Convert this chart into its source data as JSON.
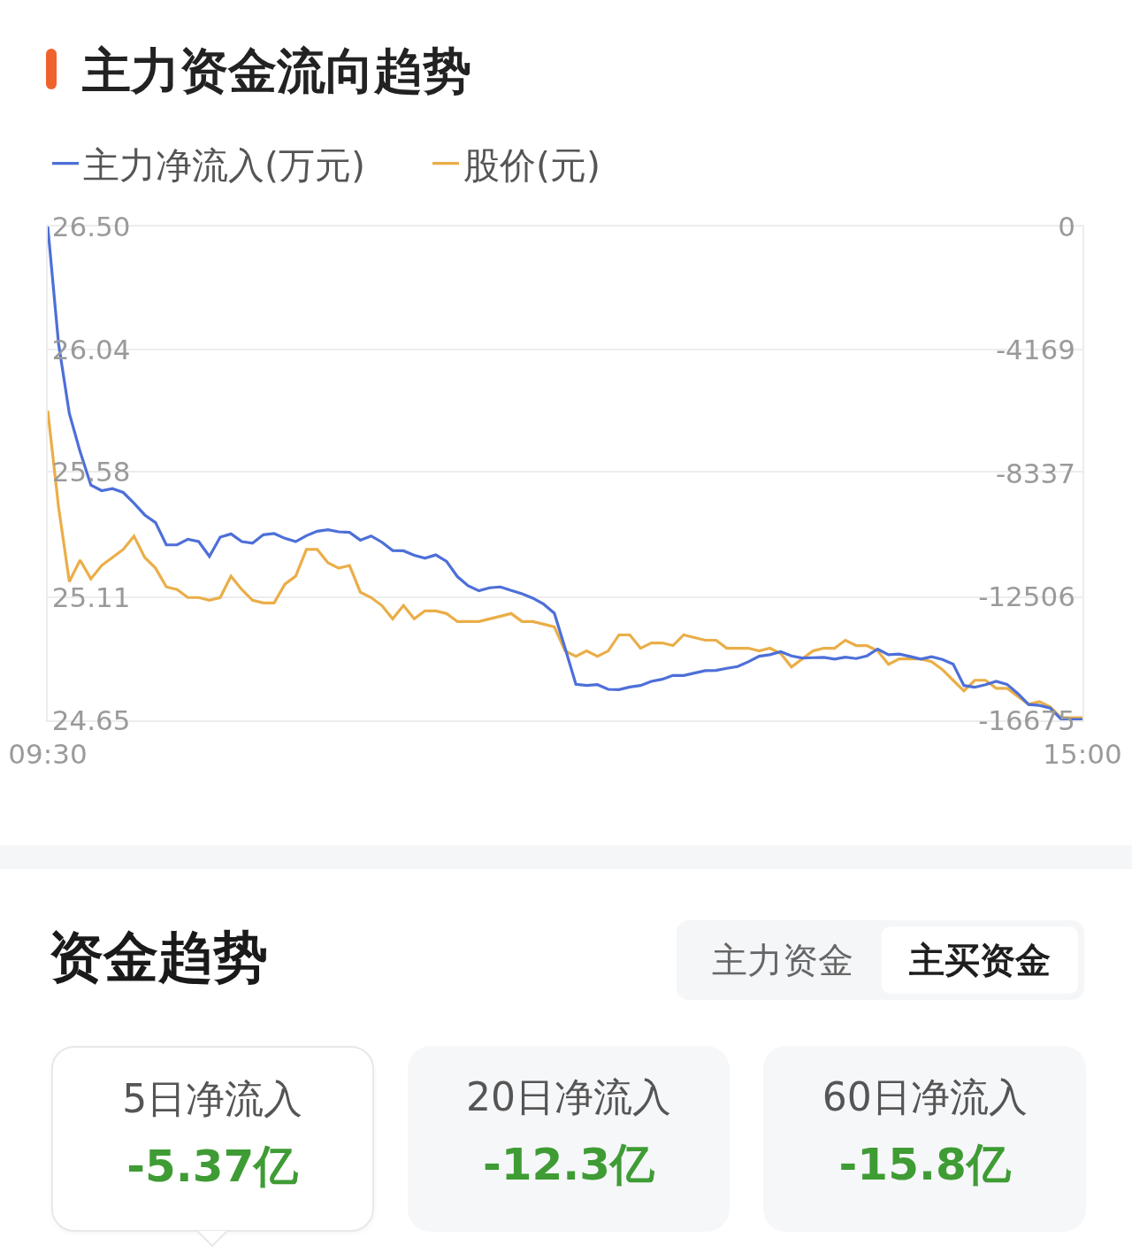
{
  "chart_data": [
    {
      "type": "line",
      "title": "主力资金流向趋势",
      "categories": [
        "09:30",
        null,
        null,
        null,
        null,
        null,
        null,
        null,
        null,
        null,
        null,
        null,
        null,
        null,
        null,
        null,
        null,
        null,
        null,
        null,
        null,
        null,
        null,
        null,
        null,
        null,
        null,
        null,
        null,
        null,
        null,
        null,
        null,
        null,
        null,
        null,
        null,
        null,
        null,
        null,
        null,
        null,
        null,
        null,
        null,
        null,
        null,
        null,
        null,
        null,
        null,
        null,
        null,
        null,
        null,
        null,
        null,
        null,
        null,
        null,
        null,
        null,
        null,
        null,
        null,
        null,
        null,
        null,
        null,
        null,
        null,
        null,
        null,
        null,
        null,
        null,
        null,
        null,
        null,
        null,
        null,
        null,
        null,
        null,
        null,
        null,
        null,
        null,
        null,
        null,
        null,
        null,
        null,
        null,
        null,
        null,
        "15:00"
      ],
      "series": [
        {
          "name": "主力净流入(万元)",
          "color": "#4d6fd8",
          "axis": "y2",
          "values": [
            0,
            -3950,
            -6310,
            -7600,
            -8730,
            -8920,
            -8850,
            -8980,
            -9340,
            -9740,
            -10000,
            -10750,
            -10750,
            -10560,
            -10640,
            -11140,
            -10490,
            -10380,
            -10640,
            -10690,
            -10410,
            -10370,
            -10530,
            -10640,
            -10440,
            -10290,
            -10240,
            -10310,
            -10330,
            -10590,
            -10450,
            -10660,
            -10940,
            -10950,
            -11100,
            -11200,
            -11090,
            -11310,
            -11820,
            -12130,
            -12300,
            -12200,
            -12170,
            -12290,
            -12400,
            -12550,
            -12750,
            -13060,
            -14240,
            -15460,
            -15500,
            -15470,
            -15630,
            -15640,
            -15550,
            -15500,
            -15360,
            -15290,
            -15160,
            -15160,
            -15080,
            -15000,
            -14990,
            -14920,
            -14860,
            -14700,
            -14510,
            -14460,
            -14360,
            -14500,
            -14570,
            -14560,
            -14550,
            -14610,
            -14540,
            -14590,
            -14500,
            -14270,
            -14460,
            -14440,
            -14520,
            -14610,
            -14530,
            -14620,
            -14780,
            -15500,
            -15560,
            -15470,
            -15360,
            -15460,
            -15770,
            -16140,
            -16170,
            -16260,
            -16630,
            -16650,
            -16650
          ]
        },
        {
          "name": "股价(元)",
          "color": "#eaae48",
          "values": [
            25.81,
            25.45,
            25.17,
            25.25,
            25.18,
            25.23,
            25.26,
            25.29,
            25.34,
            25.26,
            25.22,
            25.15,
            25.14,
            25.11,
            25.11,
            25.1,
            25.11,
            25.19,
            25.14,
            25.1,
            25.09,
            25.09,
            25.16,
            25.19,
            25.29,
            25.29,
            25.24,
            25.22,
            25.23,
            25.13,
            25.11,
            25.08,
            25.03,
            25.08,
            25.03,
            25.06,
            25.06,
            25.05,
            25.02,
            25.02,
            25.02,
            25.03,
            25.04,
            25.05,
            25.02,
            25.02,
            25.01,
            25,
            24.91,
            24.89,
            24.91,
            24.89,
            24.91,
            24.97,
            24.97,
            24.92,
            24.94,
            24.94,
            24.93,
            24.97,
            24.96,
            24.95,
            24.95,
            24.92,
            24.92,
            24.92,
            24.91,
            24.92,
            24.9,
            24.85,
            24.88,
            24.91,
            24.92,
            24.92,
            24.95,
            24.93,
            24.93,
            24.91,
            24.86,
            24.88,
            24.88,
            24.88,
            24.87,
            24.84,
            24.8,
            24.76,
            24.8,
            24.8,
            24.77,
            24.77,
            24.74,
            24.71,
            24.72,
            24.7,
            24.66,
            24.66,
            24.66
          ]
        }
      ],
      "ylim": [
        24.65,
        26.5
      ],
      "yticks": [
        24.65,
        25.11,
        25.58,
        26.04,
        {
          "value": 26.5,
          "label": "26.50"
        }
      ],
      "y2lim": [
        -16675,
        0
      ],
      "y2ticks": [
        -16675,
        -12506,
        -8337,
        -4169,
        0
      ],
      "grid": "y",
      "legend": "top left"
    },
    {
      "type": "other",
      "title": "资金趋势",
      "annotations": [
        "主力资金",
        "主买资金",
        "5日净流入",
        "-5.37亿",
        "20日净流入",
        "-12.3亿",
        "60日净流入",
        "-15.8亿"
      ]
    }
  ]
}
